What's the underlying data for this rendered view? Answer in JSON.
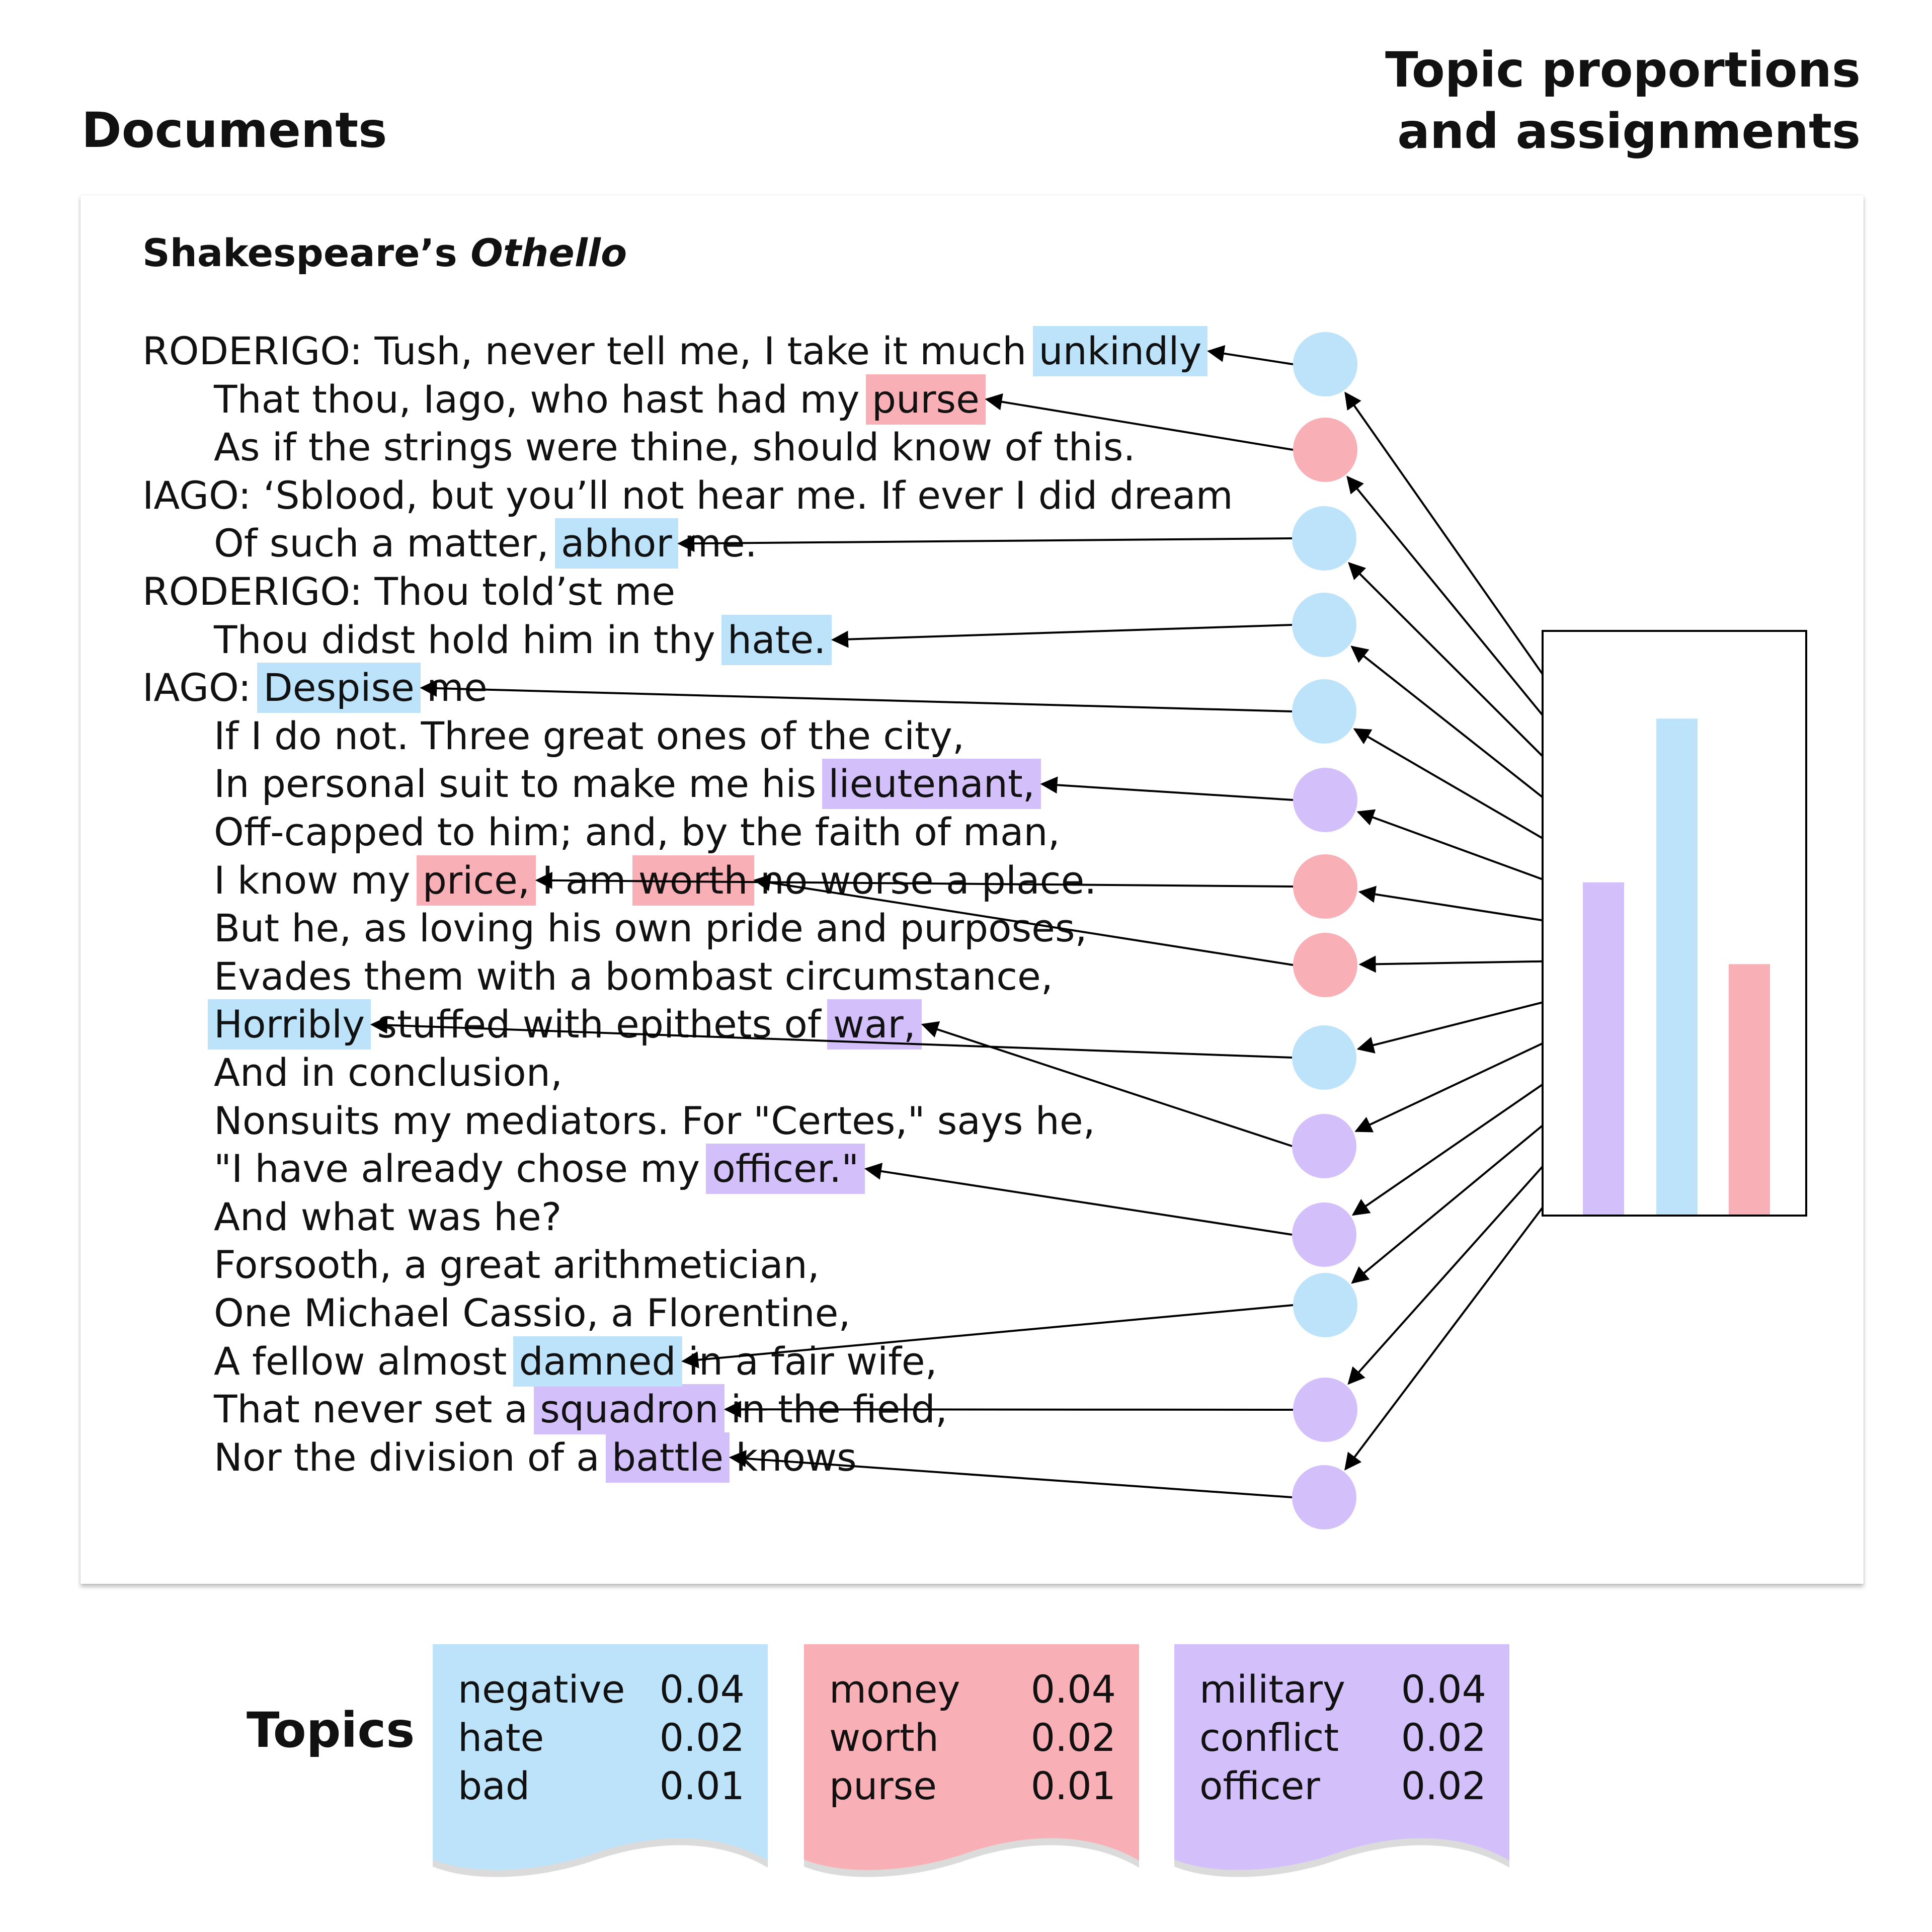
{
  "headings": {
    "documents": "Documents",
    "topic_line1": "Topic proportions",
    "topic_line2": "and assignments",
    "topics": "Topics"
  },
  "document": {
    "title_prefix": "Shakespeare’s",
    "title_italic": "Othello",
    "lines": [
      {
        "indent": false,
        "text": "RODERIGO: Tush, never tell me, I take it much unkindly"
      },
      {
        "indent": true,
        "text": "That thou, Iago, who hast had my purse"
      },
      {
        "indent": true,
        "text": "As if the strings were thine, should know of this."
      },
      {
        "indent": false,
        "text": "IAGO: ‘Sblood, but you’ll not hear me. If ever I did dream"
      },
      {
        "indent": true,
        "text": "Of such a matter, abhor me."
      },
      {
        "indent": false,
        "text": "RODERIGO: Thou told’st me"
      },
      {
        "indent": true,
        "text": "Thou didst hold him in thy hate."
      },
      {
        "indent": false,
        "text": "IAGO: Despise me"
      },
      {
        "indent": true,
        "text": "If I do not. Three great ones of the city,"
      },
      {
        "indent": true,
        "text": "In personal suit to make me his lieutenant,"
      },
      {
        "indent": true,
        "text": "Off-capped to him; and, by the faith of man,"
      },
      {
        "indent": true,
        "text": "I know my price, I am worth no worse a place."
      },
      {
        "indent": true,
        "text": "But he, as loving his own pride and purposes,"
      },
      {
        "indent": true,
        "text": "Evades them with a bombast circumstance,"
      },
      {
        "indent": true,
        "text": "Horribly stuffed with epithets of war,"
      },
      {
        "indent": true,
        "text": "And in conclusion,"
      },
      {
        "indent": true,
        "text": "Nonsuits my mediators. For \"Certes,\" says he,"
      },
      {
        "indent": true,
        "text": "\"I have already chose my officer.\""
      },
      {
        "indent": true,
        "text": "And what was he?"
      },
      {
        "indent": true,
        "text": "Forsooth, a great arithmetician,"
      },
      {
        "indent": true,
        "text": "One Michael Cassio, a Florentine,"
      },
      {
        "indent": true,
        "text": "A fellow almost damned in a fair wife,"
      },
      {
        "indent": true,
        "text": "That never set a squadron in the field,"
      },
      {
        "indent": true,
        "text": "Nor the division of a battle knows"
      }
    ],
    "highlights": [
      {
        "line": 0,
        "word": "unkindly",
        "topic": "negative"
      },
      {
        "line": 1,
        "word": "purse",
        "topic": "money"
      },
      {
        "line": 4,
        "word": "abhor",
        "topic": "negative"
      },
      {
        "line": 6,
        "word": "hate.",
        "topic": "negative"
      },
      {
        "line": 7,
        "word": "Despise",
        "topic": "negative"
      },
      {
        "line": 9,
        "word": "lieutenant,",
        "topic": "military"
      },
      {
        "line": 11,
        "word": "price,",
        "topic": "money"
      },
      {
        "line": 11,
        "word": "worth",
        "topic": "money"
      },
      {
        "line": 14,
        "word": "Horribly",
        "topic": "negative"
      },
      {
        "line": 14,
        "word": "war,",
        "topic": "military"
      },
      {
        "line": 17,
        "word": "officer.\"",
        "topic": "military"
      },
      {
        "line": 21,
        "word": "damned",
        "topic": "negative"
      },
      {
        "line": 22,
        "word": "squadron",
        "topic": "military"
      },
      {
        "line": 23,
        "word": "battle",
        "topic": "military"
      }
    ]
  },
  "assignments": [
    {
      "topic": "negative",
      "target": 0
    },
    {
      "topic": "money",
      "target": 1
    },
    {
      "topic": "negative",
      "target": 2
    },
    {
      "topic": "negative",
      "target": 3
    },
    {
      "topic": "negative",
      "target": 4
    },
    {
      "topic": "military",
      "target": 5
    },
    {
      "topic": "money",
      "target": 6
    },
    {
      "topic": "money",
      "target": 7
    },
    {
      "topic": "negative",
      "target": 8
    },
    {
      "topic": "military",
      "target": 9
    },
    {
      "topic": "military",
      "target": 10
    },
    {
      "topic": "negative",
      "target": 11
    },
    {
      "topic": "military",
      "target": 12
    },
    {
      "topic": "military",
      "target": 13
    }
  ],
  "chart_data": {
    "type": "bar",
    "title": "",
    "xlabel": "",
    "ylabel": "",
    "categories": [
      "military",
      "negative",
      "money"
    ],
    "values": [
      0.57,
      0.85,
      0.43
    ],
    "colors": [
      "#d3c0fb",
      "#bde3fa",
      "#f9afb6"
    ],
    "ylim": [
      0,
      1
    ],
    "grid": false
  },
  "colors": {
    "negative": "#bde3fa",
    "money": "#f9afb6",
    "military": "#d3c0fb"
  },
  "topics": [
    {
      "id": "negative",
      "color": "#bde3fa",
      "words": [
        {
          "term": "negative",
          "prob": "0.04"
        },
        {
          "term": "hate",
          "prob": "0.02"
        },
        {
          "term": "bad",
          "prob": "0.01"
        }
      ]
    },
    {
      "id": "money",
      "color": "#f9afb6",
      "words": [
        {
          "term": "money",
          "prob": "0.04"
        },
        {
          "term": "worth",
          "prob": "0.02"
        },
        {
          "term": "purse",
          "prob": "0.01"
        }
      ]
    },
    {
      "id": "military",
      "color": "#d3c0fb",
      "words": [
        {
          "term": "military",
          "prob": "0.04"
        },
        {
          "term": "conflict",
          "prob": "0.02"
        },
        {
          "term": "officer",
          "prob": "0.02"
        }
      ]
    }
  ]
}
